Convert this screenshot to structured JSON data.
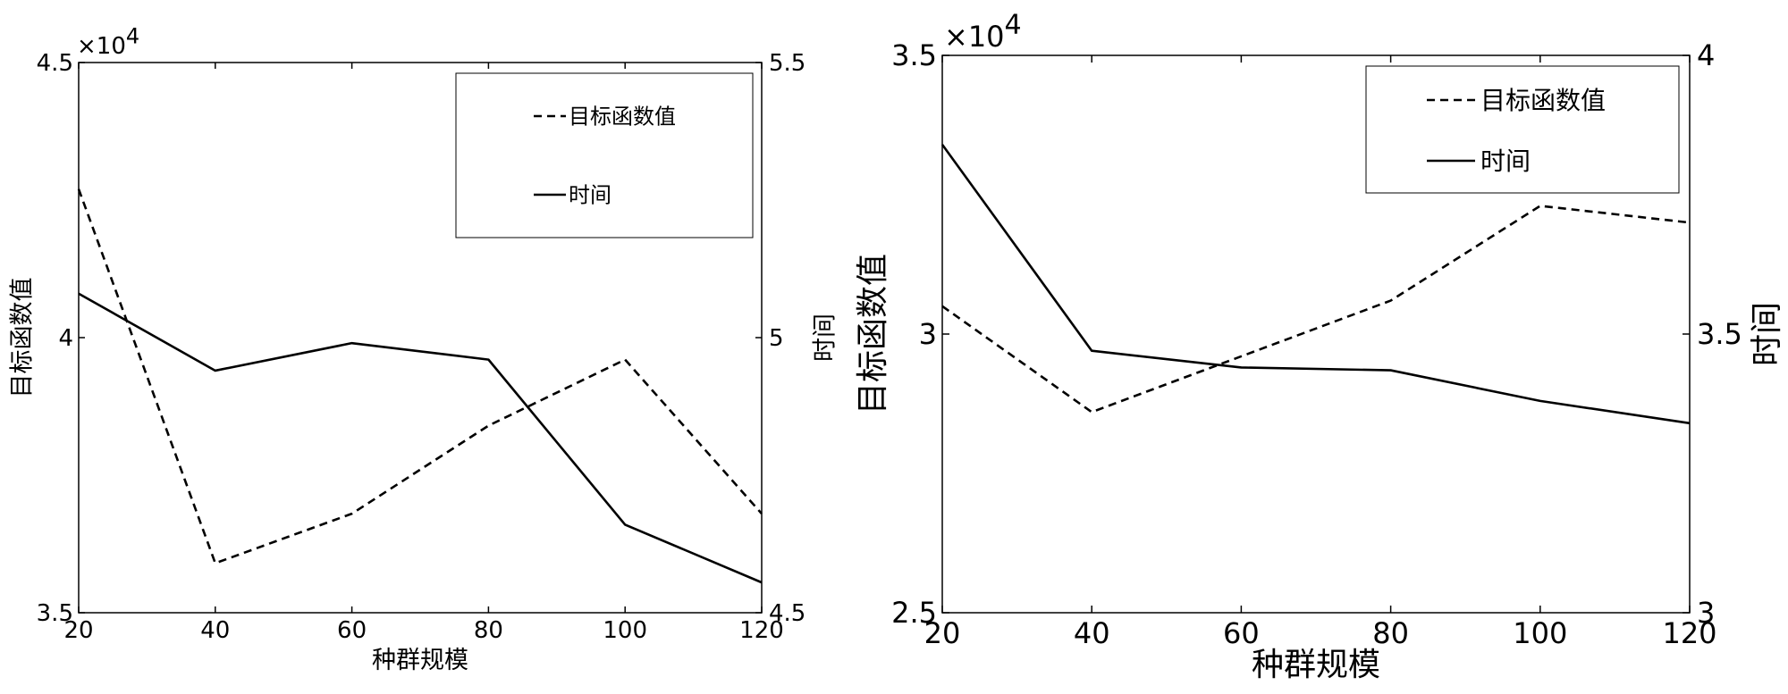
{
  "chart_data": [
    {
      "type": "line",
      "xlabel": "种群规模",
      "ylabel": "目标函数值",
      "y2label": "时间",
      "y_multiplier": "×10",
      "y_multiplier_exp": "4",
      "x": [
        20,
        40,
        60,
        80,
        100,
        120
      ],
      "x_ticks": [
        "20",
        "40",
        "60",
        "80",
        "100",
        "120"
      ],
      "xlim": [
        20,
        120
      ],
      "ylim": [
        3.5,
        4.5
      ],
      "y_ticks": [
        "3.5",
        "4",
        "4.5"
      ],
      "y2lim": [
        4.5,
        5.5
      ],
      "y2_ticks": [
        "4.5",
        "5",
        "5.5"
      ],
      "grid": false,
      "legend": "top-right",
      "series": [
        {
          "name": "目标函数值",
          "axis": "left",
          "style": "dashed",
          "values": [
            4.27,
            3.59,
            3.68,
            3.84,
            3.96,
            3.68
          ]
        },
        {
          "name": "时间",
          "axis": "right",
          "style": "solid",
          "values": [
            5.08,
            4.94,
            4.99,
            4.96,
            4.66,
            4.555
          ]
        }
      ]
    },
    {
      "type": "line",
      "xlabel": "种群规模",
      "ylabel": "目标函数值",
      "y2label": "时间",
      "y_multiplier": "×10",
      "y_multiplier_exp": "4",
      "x": [
        20,
        40,
        60,
        80,
        100,
        120
      ],
      "x_ticks": [
        "20",
        "40",
        "60",
        "80",
        "100",
        "120"
      ],
      "xlim": [
        20,
        120
      ],
      "ylim": [
        2.5,
        3.5
      ],
      "y_ticks": [
        "2.5",
        "3",
        "3.5"
      ],
      "y2lim": [
        3,
        4
      ],
      "y2_ticks": [
        "3",
        "3.5",
        "4"
      ],
      "grid": false,
      "legend": "top-right",
      "series": [
        {
          "name": "目标函数值",
          "axis": "left",
          "style": "dashed",
          "values": [
            3.05,
            2.86,
            2.96,
            3.06,
            3.23,
            3.2
          ]
        },
        {
          "name": "时间",
          "axis": "right",
          "style": "solid",
          "values": [
            3.84,
            3.47,
            3.44,
            3.435,
            3.38,
            3.34
          ]
        }
      ]
    }
  ]
}
